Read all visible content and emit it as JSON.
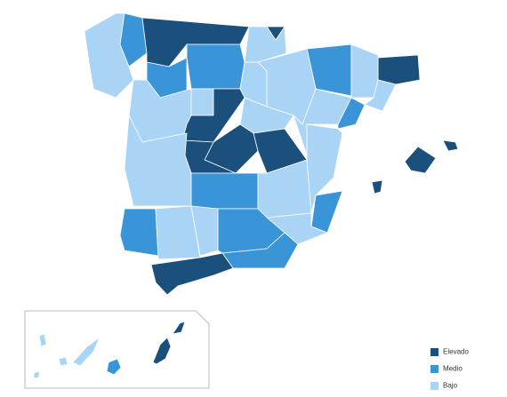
{
  "legend": {
    "items": [
      {
        "label": "Elevado",
        "color": "#1b4f7c"
      },
      {
        "label": "Medio",
        "color": "#3a95d8"
      },
      {
        "label": "Bajo",
        "color": "#a9d4f5"
      }
    ]
  }
}
